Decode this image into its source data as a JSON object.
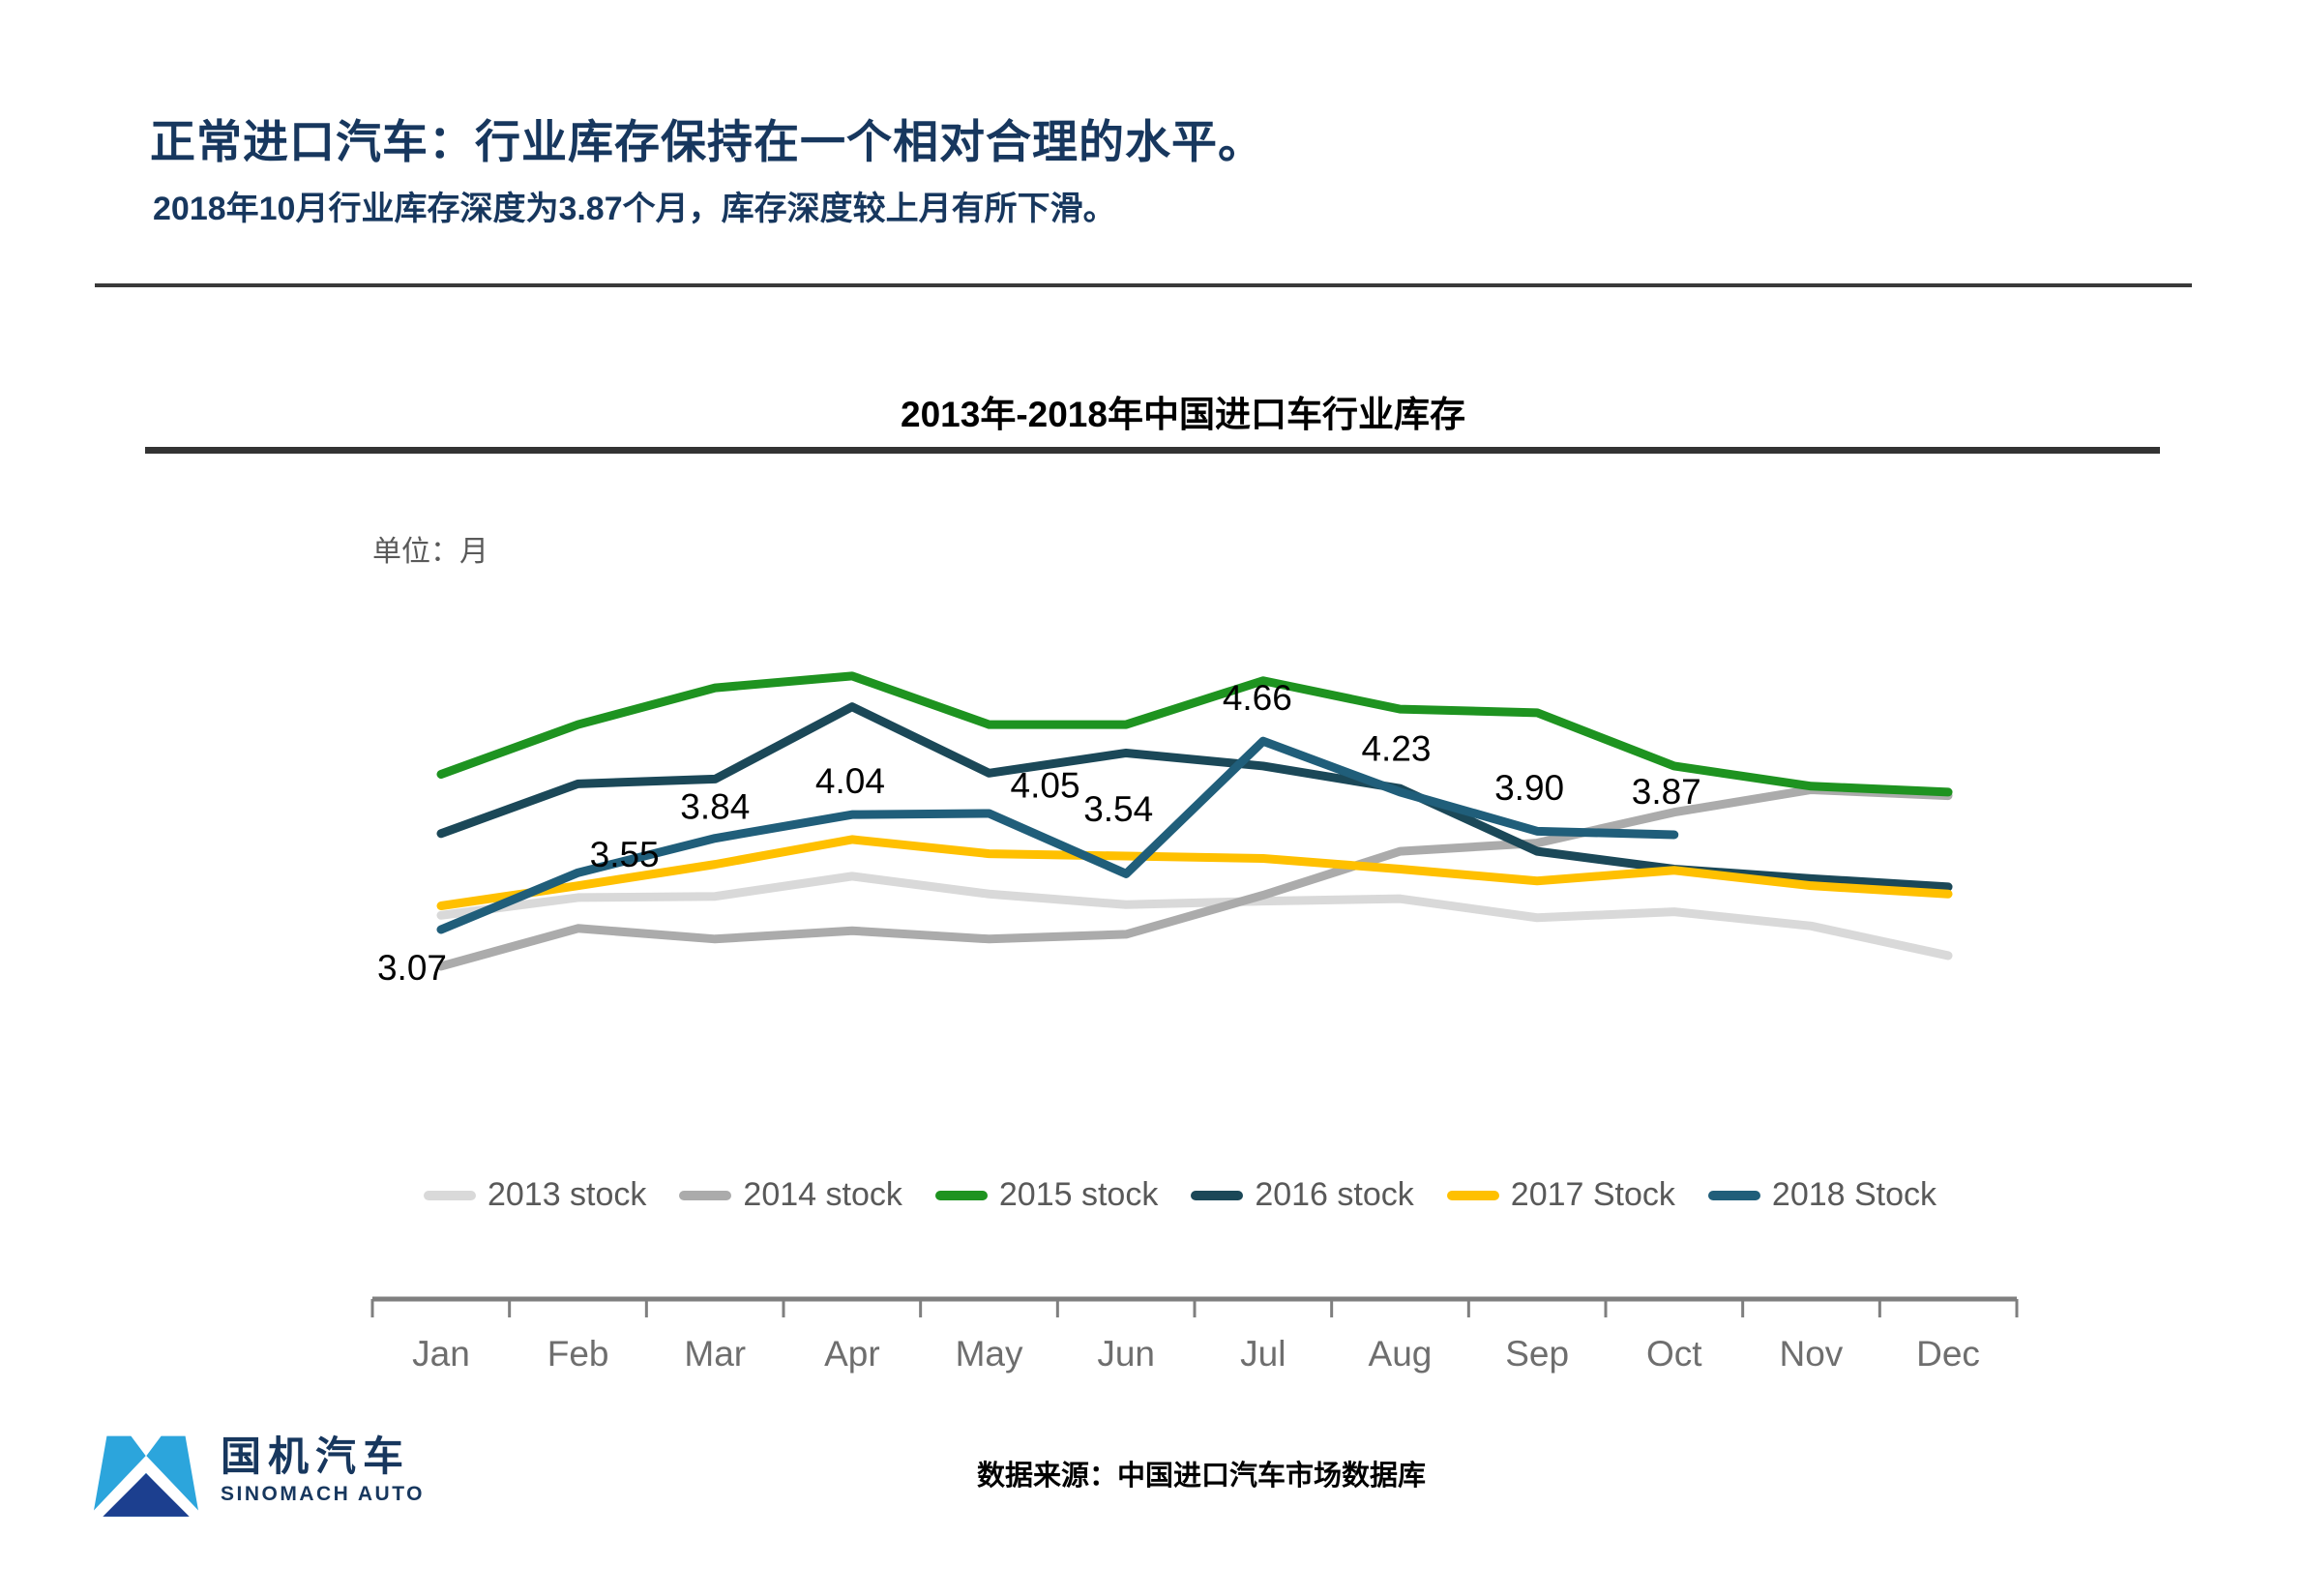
{
  "header": {
    "title": "正常进口汽车：行业库存保持在一个相对合理的水平。",
    "subtitle": "2018年10月行业库存深度为3.87个月，库存深度较上月有所下滑。"
  },
  "chart": {
    "title": "2013年-2018年中国进口车行业库存",
    "unit_label": "单位：月"
  },
  "chart_data": {
    "type": "line",
    "title": "2013年-2018年中国进口车行业库存",
    "unit": "月",
    "categories": [
      "Jan",
      "Feb",
      "Mar",
      "Apr",
      "May",
      "Jun",
      "Jul",
      "Aug",
      "Sep",
      "Oct",
      "Nov",
      "Dec"
    ],
    "series": [
      {
        "name": "2013 stock",
        "color": "#D9D9D9",
        "values": [
          3.19,
          3.34,
          3.35,
          3.52,
          3.37,
          3.28,
          3.31,
          3.33,
          3.17,
          3.22,
          3.1,
          2.85
        ]
      },
      {
        "name": "2014 stock",
        "color": "#ABABAB",
        "values": [
          2.76,
          3.08,
          2.99,
          3.06,
          2.99,
          3.03,
          3.36,
          3.73,
          3.8,
          4.06,
          4.25,
          4.2
        ]
      },
      {
        "name": "2015 stock",
        "color": "#1E9320",
        "values": [
          4.38,
          4.8,
          5.11,
          5.21,
          4.8,
          4.8,
          5.17,
          4.93,
          4.9,
          4.45,
          4.28,
          4.23
        ]
      },
      {
        "name": "2016 stock",
        "color": "#1B4858",
        "values": [
          3.88,
          4.3,
          4.34,
          4.95,
          4.39,
          4.56,
          4.45,
          4.26,
          3.73,
          3.58,
          3.5,
          3.43
        ]
      },
      {
        "name": "2017 Stock",
        "color": "#FFC000",
        "values": [
          3.27,
          3.44,
          3.62,
          3.83,
          3.71,
          3.69,
          3.67,
          3.58,
          3.48,
          3.57,
          3.44,
          3.37
        ]
      },
      {
        "name": "2018 Stock",
        "color": "#205E7A",
        "data_labels": true,
        "values": [
          3.07,
          3.55,
          3.84,
          4.04,
          4.05,
          3.54,
          4.66,
          4.23,
          3.9,
          3.87
        ]
      }
    ],
    "highlight_labels": [
      "3.07",
      "3.55",
      "3.84",
      "4.04",
      "4.05",
      "3.54",
      "4.66",
      "4.23",
      "3.90",
      "3.87"
    ],
    "ylim": [
      2.5,
      5.6
    ],
    "grid": false,
    "legend_position": "bottom"
  },
  "footer": {
    "logo_cn": "国机汽车",
    "logo_en": "SINOMACH AUTO",
    "source": "数据来源：中国进口汽车市场数据库"
  }
}
